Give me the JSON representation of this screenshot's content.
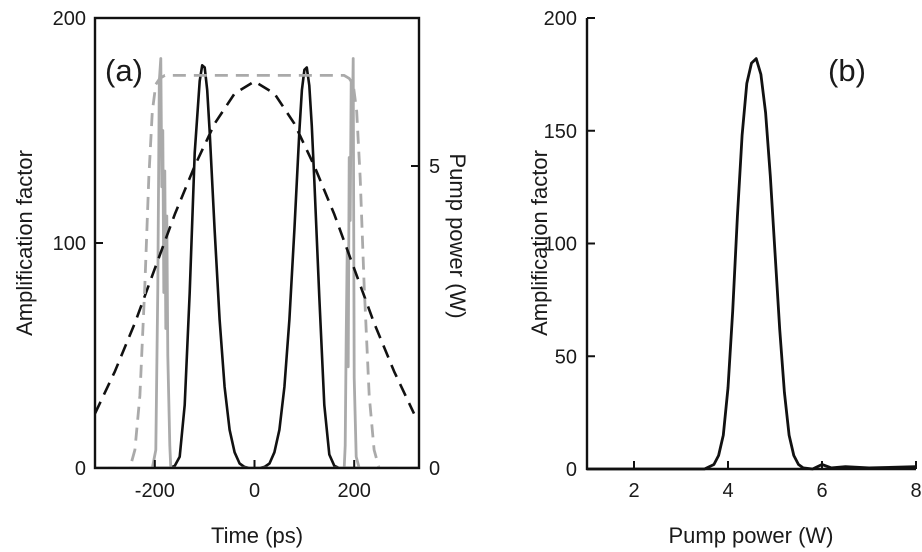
{
  "chart_data": [
    {
      "type": "line",
      "panel_label": "(a)",
      "xlabel": "Time (ps)",
      "ylabel": "Amplification factor",
      "y2label": "Pump power (W)",
      "xlim": [
        -320,
        330
      ],
      "ylim": [
        0,
        200
      ],
      "y2lim": [
        0,
        7.45
      ],
      "xticks": [
        "-200",
        "0",
        "200"
      ],
      "xtick_values": [
        -200,
        0,
        200
      ],
      "yticks": [
        "0",
        "100",
        "200"
      ],
      "ytick_values": [
        0,
        100,
        200
      ],
      "y2ticks": [
        "0",
        "5"
      ],
      "y2tick_values": [
        0,
        5
      ],
      "series": [
        {
          "axis": "left",
          "style": "solid",
          "color": "#111111",
          "x": [
            -320,
            -200,
            -170,
            -160,
            -150,
            -140,
            -130,
            -120,
            -110,
            -105,
            -100,
            -95,
            -90,
            -80,
            -70,
            -60,
            -50,
            -40,
            -30,
            -20,
            -10,
            0,
            10,
            20,
            30,
            40,
            50,
            60,
            70,
            80,
            90,
            95,
            100,
            105,
            110,
            115,
            120,
            130,
            140,
            150,
            160,
            170,
            200,
            330
          ],
          "y": [
            0,
            0,
            0,
            1,
            5,
            28,
            78,
            140,
            172,
            179,
            178,
            168,
            150,
            106,
            66,
            36,
            17,
            7,
            2,
            0.5,
            0,
            0,
            0,
            0.5,
            2,
            7,
            17,
            36,
            66,
            106,
            150,
            168,
            177,
            178,
            170,
            152,
            128,
            76,
            28,
            6,
            1,
            0,
            0,
            0
          ]
        },
        {
          "axis": "left",
          "style": "solid",
          "color": "#aaaaaa",
          "x": [
            -320,
            -205,
            -198,
            -194,
            -191,
            -188,
            -186,
            -184,
            -182,
            -180,
            -178,
            -176,
            -174,
            -172,
            -170,
            -168,
            -160,
            0,
            180,
            182,
            184,
            186,
            188,
            190,
            192,
            194,
            196,
            198,
            200,
            204,
            210,
            330
          ],
          "y": [
            0,
            0,
            8,
            80,
            172,
            182,
            125,
            150,
            78,
            132,
            62,
            112,
            50,
            30,
            10,
            0,
            0,
            0,
            0,
            10,
            58,
            96,
            45,
            138,
            110,
            172,
            150,
            182,
            40,
            5,
            0,
            0
          ]
        },
        {
          "axis": "right",
          "style": "dashed",
          "color": "#111111",
          "x": [
            -320,
            -280,
            -240,
            -200,
            -160,
            -120,
            -80,
            -40,
            0,
            40,
            80,
            120,
            160,
            200,
            240,
            280,
            320
          ],
          "y": [
            0.9,
            1.6,
            2.4,
            3.3,
            4.2,
            5.0,
            5.7,
            6.2,
            6.4,
            6.2,
            5.7,
            5.0,
            4.2,
            3.3,
            2.4,
            1.6,
            0.9
          ]
        },
        {
          "axis": "right",
          "style": "dashed",
          "color": "#aaaaaa",
          "x": [
            -320,
            -250,
            -240,
            -230,
            -220,
            -212,
            -205,
            -198,
            -190,
            -180,
            -170,
            0,
            170,
            180,
            190,
            198,
            205,
            212,
            220,
            230,
            240,
            250,
            330
          ],
          "y": [
            0,
            0,
            0.3,
            1.2,
            3.0,
            4.8,
            5.9,
            6.35,
            6.45,
            6.5,
            6.5,
            6.5,
            6.5,
            6.5,
            6.45,
            6.35,
            5.9,
            4.8,
            3.0,
            1.2,
            0.3,
            0,
            0
          ]
        }
      ],
      "grid": false
    },
    {
      "type": "line",
      "panel_label": "(b)",
      "xlabel": "Pump power (W)",
      "ylabel": "Amplification factor",
      "xlim": [
        1,
        8
      ],
      "ylim": [
        0,
        200
      ],
      "xticks": [
        "2",
        "4",
        "6",
        "8"
      ],
      "xtick_values": [
        2,
        4,
        6,
        8
      ],
      "yticks": [
        "0",
        "50",
        "100",
        "150",
        "200"
      ],
      "ytick_values": [
        0,
        50,
        100,
        150,
        200
      ],
      "series": [
        {
          "style": "solid",
          "color": "#111111",
          "x": [
            1,
            2,
            3,
            3.5,
            3.7,
            3.8,
            3.9,
            4.0,
            4.1,
            4.2,
            4.3,
            4.4,
            4.5,
            4.6,
            4.7,
            4.8,
            4.9,
            5.0,
            5.1,
            5.2,
            5.3,
            5.4,
            5.5,
            5.6,
            5.8,
            6.0,
            6.2,
            6.5,
            7,
            8
          ],
          "y": [
            0,
            0,
            0,
            0,
            2,
            6,
            15,
            36,
            70,
            112,
            148,
            171,
            180,
            182,
            175,
            158,
            130,
            96,
            62,
            34,
            15,
            6,
            2,
            0.5,
            0,
            2,
            0.5,
            1,
            0.5,
            1
          ]
        }
      ],
      "grid": false
    }
  ]
}
